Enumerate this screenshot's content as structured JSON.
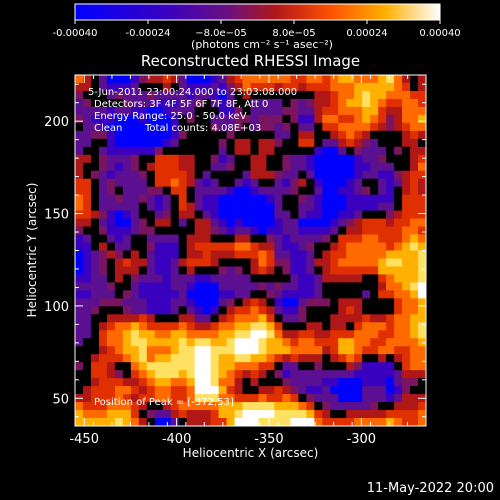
{
  "chart_data": {
    "type": "heatmap",
    "title": "Reconstructed RHESSI Image",
    "xlabel": "Heliocentric X (arcsec)",
    "ylabel": "Heliocentric Y (arcsec)",
    "xlim": [
      -455,
      -265
    ],
    "ylim": [
      35,
      225
    ],
    "xticks": [
      -450,
      -400,
      -350,
      -300
    ],
    "yticks": [
      50,
      100,
      150,
      200
    ],
    "colorbar": {
      "min": -0.0004,
      "max": 0.0004,
      "ticks": [
        "-0.00040",
        "-0.00024",
        "−8.0e−05",
        "8.0e−05",
        "0.00024",
        "0.00040"
      ],
      "unit_label": "(photons cm⁻² s⁻¹ asec⁻²)",
      "palette": [
        "#0000ff",
        "#3a00c0",
        "#5a1090",
        "#7a1460",
        "#b01818",
        "#e03000",
        "#ff6a00",
        "#ffb000",
        "#ffe060",
        "#ffffff"
      ]
    },
    "annotations": {
      "time_range": "5-Jun-2011 23:00:24.000 to 23:03:08.000",
      "detectors": "Detectors: 3F 4F 5F 6F 7F 8F, Att 0",
      "energy_range": "Energy Range: 25.0 - 50.0 keV",
      "algorithm": "Clean",
      "total_counts": "Total counts: 4.08E+03",
      "peak_position": "Position of Peak = [-372,53]"
    }
  },
  "footer": {
    "date": "11-May-2022 20:00"
  }
}
